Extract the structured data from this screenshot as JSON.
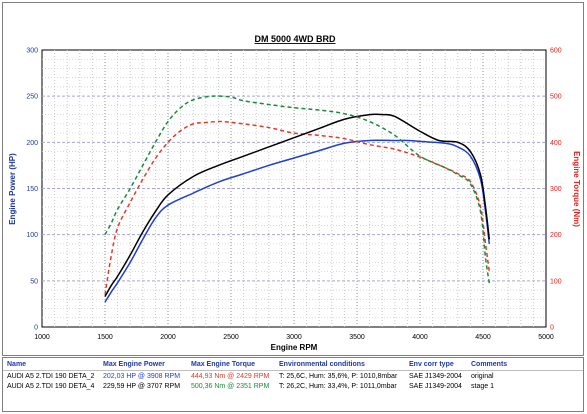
{
  "chart_data": {
    "type": "line",
    "title": "DM 5000 4WD BRD",
    "xlabel": "Engine RPM",
    "ylabel_left": "Engine Power (HP)",
    "ylabel_right": "Engine Torque (Nm)",
    "xlim": [
      1000,
      5000
    ],
    "ylim_left": [
      0,
      300
    ],
    "ylim_right": [
      0,
      600
    ],
    "x_ticks": [
      "1000",
      "1500",
      "2000",
      "2500",
      "3000",
      "3500",
      "4000",
      "4500",
      "5000"
    ],
    "y_ticks_left": [
      "0",
      "50",
      "100",
      "150",
      "200",
      "250",
      "300"
    ],
    "y_ticks_right": [
      "0",
      "100",
      "200",
      "300",
      "400",
      "500",
      "600"
    ],
    "grid": "dotted",
    "series": [
      {
        "name": "AUDI A5 2.TDI 190 DETA_2",
        "quantity": "power",
        "axis": "left",
        "color": "#1e3fd6",
        "dash": "solid",
        "x": [
          1500,
          1550,
          1600,
          1700,
          1800,
          1900,
          2000,
          2200,
          2400,
          2600,
          2800,
          3000,
          3200,
          3400,
          3600,
          3800,
          3908,
          4000,
          4200,
          4300,
          4400,
          4480,
          4520,
          4550
        ],
        "y": [
          27,
          38,
          48,
          70,
          95,
          118,
          132,
          145,
          157,
          166,
          175,
          183,
          191,
          199,
          202,
          202,
          202,
          201,
          199,
          195,
          185,
          160,
          125,
          90
        ]
      },
      {
        "name": "AUDI A5 2.TDI 190 DETA_2",
        "quantity": "torque",
        "axis": "right",
        "color": "#e23a2a",
        "dash": "dashed",
        "x": [
          1500,
          1550,
          1600,
          1700,
          1800,
          1900,
          2000,
          2100,
          2200,
          2300,
          2429,
          2600,
          2800,
          3000,
          3200,
          3400,
          3600,
          3800,
          4000,
          4200,
          4300,
          4400,
          4480,
          4520,
          4550
        ],
        "y": [
          70,
          155,
          215,
          270,
          320,
          365,
          400,
          425,
          440,
          443,
          445,
          440,
          432,
          420,
          415,
          408,
          395,
          385,
          368,
          345,
          332,
          315,
          260,
          180,
          120
        ]
      },
      {
        "name": "AUDI A5 2.TDI 190 DETA_4",
        "quantity": "power",
        "axis": "left",
        "color": "#000000",
        "dash": "solid",
        "x": [
          1500,
          1550,
          1600,
          1700,
          1800,
          1900,
          2000,
          2200,
          2400,
          2600,
          2800,
          3000,
          3200,
          3400,
          3600,
          3707,
          3800,
          4000,
          4150,
          4300,
          4400,
          4480,
          4520,
          4550
        ],
        "y": [
          33,
          45,
          55,
          78,
          103,
          125,
          143,
          163,
          175,
          185,
          195,
          205,
          215,
          225,
          230,
          230,
          228,
          212,
          202,
          200,
          190,
          165,
          130,
          95
        ]
      },
      {
        "name": "AUDI A5 2.TDI 190 DETA_4",
        "quantity": "torque",
        "axis": "right",
        "color": "#1a8a3a",
        "dash": "dashed",
        "x": [
          1500,
          1550,
          1600,
          1700,
          1800,
          1900,
          2000,
          2100,
          2200,
          2351,
          2500,
          2600,
          2800,
          3000,
          3200,
          3400,
          3600,
          3800,
          4000,
          4200,
          4300,
          4400,
          4480,
          4520,
          4550
        ],
        "y": [
          200,
          225,
          255,
          300,
          350,
          400,
          445,
          475,
          492,
          500,
          498,
          490,
          482,
          475,
          470,
          462,
          445,
          415,
          370,
          345,
          330,
          310,
          250,
          150,
          95
        ]
      }
    ]
  },
  "table": {
    "headers": {
      "name": "Name",
      "power": "Max Engine Power",
      "torque": "Max Engine Torque",
      "env": "Environmental conditions",
      "corr": "Env corr type",
      "comments": "Comments"
    },
    "rows": [
      {
        "name": "AUDI A5 2.TDI 190 DETA_2",
        "power": "202,03 HP @ 3908 RPM",
        "torque": "444,93 Nm @ 2429 RPM",
        "env": "T: 25,6C, Hum: 35,6%, P: 1010,8mbar",
        "corr": "SAE J1349-2004",
        "comments": "original"
      },
      {
        "name": "AUDI A5 2.TDI 190 DETA_4",
        "power": "229,59 HP @ 3707 RPM",
        "torque": "500,36 Nm @ 2351 RPM",
        "env": "T: 26,2C, Hum: 33,4%, P: 1011,0mbar",
        "corr": "SAE J1349-2004",
        "comments": "stage 1"
      }
    ]
  },
  "colors": {
    "left_axis": "#1f3a9c",
    "right_axis": "#e0241e",
    "band_line": "#a6a6d6"
  }
}
